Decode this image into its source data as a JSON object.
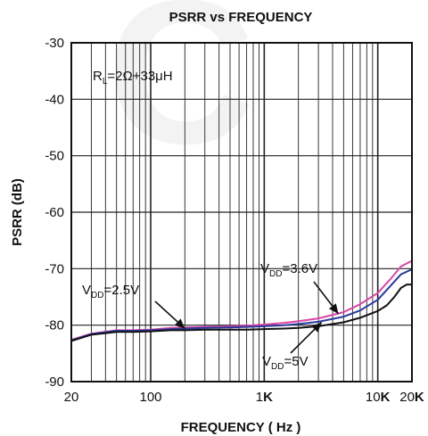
{
  "chart_data": {
    "type": "line",
    "title": "PSRR vs FREQUENCY",
    "xlabel": "FREQUENCY ( Hz )",
    "ylabel": "PSRR (dB)",
    "x_scale": "log",
    "xlim": [
      20,
      20000
    ],
    "ylim": [
      -90,
      -30
    ],
    "grid": true,
    "x_ticks": [
      {
        "value": 20,
        "label": "20"
      },
      {
        "value": 100,
        "label": "100"
      },
      {
        "value": 1000,
        "label": "1K"
      },
      {
        "value": 10000,
        "label": "10K"
      },
      {
        "value": 20000,
        "label": "20K"
      }
    ],
    "y_ticks": [
      {
        "value": -30,
        "label": "-30"
      },
      {
        "value": -40,
        "label": "-40"
      },
      {
        "value": -50,
        "label": "-50"
      },
      {
        "value": -60,
        "label": "-60"
      },
      {
        "value": -70,
        "label": "-70"
      },
      {
        "value": -80,
        "label": "-80"
      },
      {
        "value": -90,
        "label": "-90"
      }
    ],
    "condition": {
      "main": "R",
      "sub": "L",
      "rest": "=2Ω+33μH"
    },
    "series": [
      {
        "key": "vdd25",
        "color": "#d946a6",
        "x": [
          20,
          30,
          50,
          70,
          100,
          150,
          200,
          300,
          500,
          700,
          1000,
          1500,
          2000,
          3000,
          5000,
          7000,
          10000,
          13000,
          16000,
          20000
        ],
        "y": [
          -82.6,
          -81.5,
          -80.9,
          -80.9,
          -80.8,
          -80.5,
          -80.4,
          -80.3,
          -80.2,
          -80.1,
          -79.9,
          -79.6,
          -79.3,
          -78.8,
          -77.7,
          -76.3,
          -74.3,
          -71.8,
          -69.6,
          -68.6
        ]
      },
      {
        "key": "vdd36",
        "color": "#2b3a9c",
        "x": [
          20,
          30,
          50,
          70,
          100,
          150,
          200,
          300,
          500,
          700,
          1000,
          1500,
          2000,
          3000,
          5000,
          7000,
          10000,
          13000,
          16000,
          20000
        ],
        "y": [
          -82.7,
          -81.6,
          -81.0,
          -81.0,
          -80.9,
          -80.7,
          -80.6,
          -80.5,
          -80.4,
          -80.3,
          -80.2,
          -80.0,
          -79.8,
          -79.4,
          -78.5,
          -77.4,
          -75.5,
          -73.0,
          -71.0,
          -70.1
        ]
      },
      {
        "key": "vdd5",
        "color": "#111111",
        "x": [
          20,
          30,
          50,
          70,
          100,
          150,
          200,
          300,
          500,
          700,
          1000,
          1500,
          2000,
          3000,
          5000,
          7000,
          10000,
          12000,
          14000,
          16000,
          18000,
          20000
        ],
        "y": [
          -82.8,
          -81.7,
          -81.2,
          -81.2,
          -81.1,
          -80.9,
          -80.9,
          -80.8,
          -80.8,
          -80.8,
          -80.7,
          -80.6,
          -80.5,
          -80.2,
          -79.5,
          -78.7,
          -77.5,
          -76.5,
          -75.0,
          -73.4,
          -72.8,
          -72.8
        ]
      }
    ],
    "labels": [
      {
        "series": "vdd25",
        "main": "V",
        "sub": "DD",
        "rest": "=2.5V",
        "arrow_to": {
          "x": 200,
          "y": -80.6
        }
      },
      {
        "series": "vdd36",
        "main": "V",
        "sub": "DD",
        "rest": "=3.6V",
        "arrow_to": {
          "x": 4500,
          "y": -78.0
        }
      },
      {
        "series": "vdd5",
        "main": "V",
        "sub": "DD",
        "rest": "=5V",
        "arrow_to": {
          "x": 3200,
          "y": -79.5
        }
      }
    ]
  }
}
